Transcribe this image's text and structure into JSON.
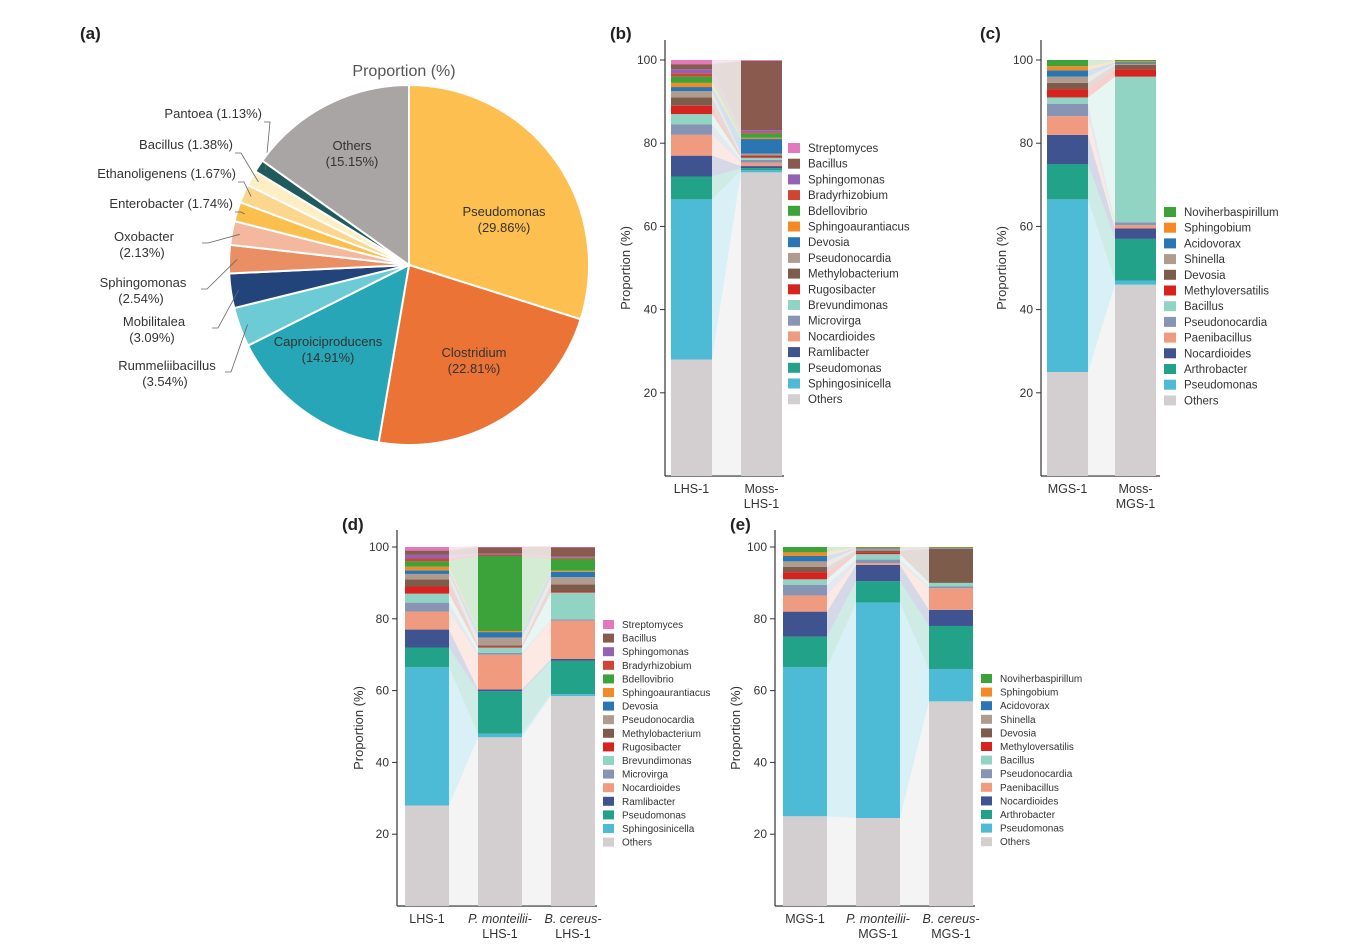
{
  "colors": {
    "Others": "#d3cecf",
    "Pseudomonas": "#4dbad6",
    "Sphingosinicella": "#4dbad6",
    "Arthrobacter": "#22a288",
    "Pseudomonas_b": "#22a288",
    "Ramlibacter": "#3f5390",
    "Nocardioides": "#3f5390",
    "Nocardioides_b": "#f09a80",
    "Paenibacillus": "#f09a80",
    "Microvirga": "#8794b3",
    "Pseudonocardia": "#8794b3",
    "Brevundimonas": "#91d4c4",
    "Bacillus_c": "#91d4c4",
    "Rugosibacter": "#d62320",
    "Methyloversatilis": "#d62320",
    "Methylobacterium": "#7e5c4b",
    "Devosia_c": "#7e5c4b",
    "Pseudonocardia_b": "#b09c8e",
    "Shinella": "#b09c8e",
    "Devosia": "#2a76b5",
    "Acidovorax": "#2a76b5",
    "Sphingoaurantiacus": "#f58a25",
    "Sphingobium": "#f58a25",
    "Bdellovibrio": "#3ba33a",
    "Noviherbaspirillum": "#3ba33a",
    "Bradyrhizobium": "#cf4533",
    "Sphingomonas": "#9461b5",
    "Bacillus": "#8a5a4e",
    "Streptomyces": "#e279bd"
  },
  "chart_data": [
    {
      "panel": "(a)",
      "type": "pie",
      "title": "Proportion (%)",
      "slices": [
        {
          "label": "Pseudomonas",
          "pct": "(29.86%)",
          "value": 29.86,
          "color": "#fdbf4f",
          "inside": true
        },
        {
          "label": "Clostridium",
          "pct": "(22.81%)",
          "value": 22.81,
          "color": "#eb7336",
          "inside": true
        },
        {
          "label": "Caproiciproducens",
          "pct": "(14.91%)",
          "value": 14.91,
          "color": "#27a6b7",
          "inside": true
        },
        {
          "label": "Rummeliibacillus",
          "pct": "(3.54%)",
          "value": 3.54,
          "color": "#6ccbd4",
          "inside": false
        },
        {
          "label": "Mobilitalea",
          "pct": "(3.09%)",
          "value": 3.09,
          "color": "#23447a",
          "inside": false
        },
        {
          "label": "Sphingomonas",
          "pct": "(2.54%)",
          "value": 2.54,
          "color": "#ea8f63",
          "inside": false
        },
        {
          "label": "Oxobacter",
          "pct": "(2.13%)",
          "value": 2.13,
          "color": "#f3b89e",
          "inside": false
        },
        {
          "label": "Enterobacter",
          "pct": "(1.74%)",
          "value": 1.74,
          "color": "#fbbf4d",
          "inside": false
        },
        {
          "label": "Ethanoligenens",
          "pct": "(1.67%)",
          "value": 1.67,
          "color": "#fcd68c",
          "inside": false
        },
        {
          "label": "Bacillus",
          "pct": "(1.38%)",
          "value": 1.38,
          "color": "#fdeec4",
          "inside": false
        },
        {
          "label": "Pantoea",
          "pct": "(1.13%)",
          "value": 1.13,
          "color": "#1f5a5c",
          "inside": false
        },
        {
          "label": "Others",
          "pct": "(15.15%)",
          "value": 15.15,
          "color": "#a9a5a4",
          "inside": true
        }
      ]
    },
    {
      "panel": "(b)",
      "type": "bar",
      "stacked": true,
      "ylabel": "Proportion (%)",
      "yticks": [
        20,
        40,
        60,
        80,
        100
      ],
      "categories": [
        [
          "LHS-1"
        ],
        [
          "Moss-",
          "LHS-1"
        ]
      ],
      "series": [
        {
          "name": "Others",
          "ckey": "Others",
          "values": [
            28,
            73
          ]
        },
        {
          "name": "Sphingosinicella",
          "ckey": "Sphingosinicella",
          "values": [
            38.5,
            0.5
          ]
        },
        {
          "name": "Pseudomonas",
          "ckey": "Pseudomonas_b",
          "values": [
            5.5,
            0.5
          ]
        },
        {
          "name": "Ramlibacter",
          "ckey": "Ramlibacter",
          "values": [
            5,
            0.5
          ]
        },
        {
          "name": "Nocardioides",
          "ckey": "Nocardioides_b",
          "values": [
            5,
            0.8
          ]
        },
        {
          "name": "Microvirga",
          "ckey": "Microvirga",
          "values": [
            2.5,
            0.7
          ]
        },
        {
          "name": "Brevundimonas",
          "ckey": "Brevundimonas",
          "values": [
            2.5,
            0.5
          ]
        },
        {
          "name": "Rugosibacter",
          "ckey": "Rugosibacter",
          "values": [
            2,
            0.3
          ]
        },
        {
          "name": "Methylobacterium",
          "ckey": "Methylobacterium",
          "values": [
            2,
            0.3
          ]
        },
        {
          "name": "Pseudonocardia",
          "ckey": "Pseudonocardia_b",
          "values": [
            1.5,
            0.4
          ]
        },
        {
          "name": "Devosia",
          "ckey": "Devosia",
          "values": [
            1,
            3.5
          ]
        },
        {
          "name": "Sphingoaurantiacus",
          "ckey": "Sphingoaurantiacus",
          "values": [
            1,
            0.3
          ]
        },
        {
          "name": "Bdellovibrio",
          "ckey": "Bdellovibrio",
          "values": [
            1.5,
            1
          ]
        },
        {
          "name": "Bradyrhizobium",
          "ckey": "Bradyrhizobium",
          "values": [
            0.8,
            0.3
          ]
        },
        {
          "name": "Sphingomonas",
          "ckey": "Sphingomonas",
          "values": [
            1,
            0.5
          ]
        },
        {
          "name": "Bacillus",
          "ckey": "Bacillus",
          "values": [
            1.2,
            16.7
          ]
        },
        {
          "name": "Streptomyces",
          "ckey": "Streptomyces",
          "values": [
            1,
            0.2
          ]
        }
      ]
    },
    {
      "panel": "(c)",
      "type": "bar",
      "stacked": true,
      "ylabel": "Proportion (%)",
      "yticks": [
        20,
        40,
        60,
        80,
        100
      ],
      "categories": [
        [
          "MGS-1"
        ],
        [
          "Moss-",
          "MGS-1"
        ]
      ],
      "series": [
        {
          "name": "Others",
          "ckey": "Others",
          "values": [
            25,
            46
          ]
        },
        {
          "name": "Pseudomonas",
          "ckey": "Pseudomonas",
          "values": [
            41.5,
            1
          ]
        },
        {
          "name": "Arthrobacter",
          "ckey": "Arthrobacter",
          "values": [
            8.5,
            10
          ]
        },
        {
          "name": "Nocardioides",
          "ckey": "Nocardioides",
          "values": [
            7,
            2.5
          ]
        },
        {
          "name": "Paenibacillus",
          "ckey": "Paenibacillus",
          "values": [
            4.5,
            0.8
          ]
        },
        {
          "name": "Pseudonocardia",
          "ckey": "Pseudonocardia",
          "values": [
            3,
            0.7
          ]
        },
        {
          "name": "Bacillus",
          "ckey": "Bacillus_c",
          "values": [
            1.5,
            35
          ]
        },
        {
          "name": "Methyloversatilis",
          "ckey": "Methyloversatilis",
          "values": [
            2,
            1.8
          ]
        },
        {
          "name": "Devosia",
          "ckey": "Devosia_c",
          "values": [
            1.5,
            1
          ]
        },
        {
          "name": "Shinella",
          "ckey": "Shinella",
          "values": [
            1.5,
            0.3
          ]
        },
        {
          "name": "Acidovorax",
          "ckey": "Acidovorax",
          "values": [
            1.5,
            0.3
          ]
        },
        {
          "name": "Sphingobium",
          "ckey": "Sphingobium",
          "values": [
            1,
            0.3
          ]
        },
        {
          "name": "Noviherbaspirillum",
          "ckey": "Noviherbaspirillum",
          "values": [
            1.5,
            0.3
          ]
        }
      ]
    },
    {
      "panel": "(d)",
      "type": "bar",
      "stacked": true,
      "ylabel": "Proportion (%)",
      "yticks": [
        20,
        40,
        60,
        80,
        100
      ],
      "categories": [
        [
          "LHS-1"
        ],
        [
          "P. monteilii-",
          "LHS-1"
        ],
        [
          "B. cereus-",
          "LHS-1"
        ]
      ],
      "category_italic": [
        false,
        true,
        true
      ],
      "series": [
        {
          "name": "Others",
          "ckey": "Others",
          "values": [
            28,
            47,
            58.5
          ]
        },
        {
          "name": "Sphingosinicella",
          "ckey": "Sphingosinicella",
          "values": [
            38.5,
            1,
            0.5
          ]
        },
        {
          "name": "Pseudomonas",
          "ckey": "Pseudomonas_b",
          "values": [
            5.5,
            11.8,
            9.3
          ]
        },
        {
          "name": "Ramlibacter",
          "ckey": "Ramlibacter",
          "values": [
            5,
            0.5,
            0.5
          ]
        },
        {
          "name": "Nocardioides",
          "ckey": "Nocardioides_b",
          "values": [
            5,
            9.7,
            10.7
          ]
        },
        {
          "name": "Microvirga",
          "ckey": "Microvirga",
          "values": [
            2.5,
            0.5,
            0.3
          ]
        },
        {
          "name": "Brevundimonas",
          "ckey": "Brevundimonas",
          "values": [
            2.5,
            1.5,
            7.5
          ]
        },
        {
          "name": "Rugosibacter",
          "ckey": "Rugosibacter",
          "values": [
            2,
            0.3,
            0.3
          ]
        },
        {
          "name": "Methylobacterium",
          "ckey": "Methylobacterium",
          "values": [
            2,
            0.3,
            2
          ]
        },
        {
          "name": "Pseudonocardia",
          "ckey": "Pseudonocardia_b",
          "values": [
            1.5,
            2.2,
            2
          ]
        },
        {
          "name": "Devosia",
          "ckey": "Devosia",
          "values": [
            1,
            1.5,
            1.5
          ]
        },
        {
          "name": "Sphingoaurantiacus",
          "ckey": "Sphingoaurantiacus",
          "values": [
            1,
            0.3,
            0.3
          ]
        },
        {
          "name": "Bdellovibrio",
          "ckey": "Bdellovibrio",
          "values": [
            1.5,
            20.9,
            3.3
          ]
        },
        {
          "name": "Bradyrhizobium",
          "ckey": "Bradyrhizobium",
          "values": [
            0.8,
            0.3,
            0.3
          ]
        },
        {
          "name": "Sphingomonas",
          "ckey": "Sphingomonas",
          "values": [
            1,
            0.3,
            0.3
          ]
        },
        {
          "name": "Bacillus",
          "ckey": "Bacillus",
          "values": [
            1.2,
            1.9,
            2.7
          ]
        },
        {
          "name": "Streptomyces",
          "ckey": "Streptomyces",
          "values": [
            1,
            0.2,
            0.2
          ]
        }
      ]
    },
    {
      "panel": "(e)",
      "type": "bar",
      "stacked": true,
      "ylabel": "Proportion (%)",
      "yticks": [
        20,
        40,
        60,
        80,
        100
      ],
      "categories": [
        [
          "MGS-1"
        ],
        [
          "P. monteilii-",
          "MGS-1"
        ],
        [
          "B. cereus-",
          "MGS-1"
        ]
      ],
      "category_italic": [
        false,
        true,
        true
      ],
      "series": [
        {
          "name": "Others",
          "ckey": "Others",
          "values": [
            25,
            24.5,
            57
          ]
        },
        {
          "name": "Pseudomonas",
          "ckey": "Pseudomonas",
          "values": [
            41.5,
            60,
            9
          ]
        },
        {
          "name": "Arthrobacter",
          "ckey": "Arthrobacter",
          "values": [
            8.5,
            6,
            12
          ]
        },
        {
          "name": "Nocardioides",
          "ckey": "Nocardioides",
          "values": [
            7,
            4.5,
            4.5
          ]
        },
        {
          "name": "Paenibacillus",
          "ckey": "Paenibacillus",
          "values": [
            4.5,
            0.5,
            6
          ]
        },
        {
          "name": "Pseudonocardia",
          "ckey": "Pseudonocardia",
          "values": [
            3,
            1,
            0.5
          ]
        },
        {
          "name": "Bacillus",
          "ckey": "Bacillus_c",
          "values": [
            1.5,
            1.5,
            1
          ]
        },
        {
          "name": "Methyloversatilis",
          "ckey": "Methyloversatilis",
          "values": [
            2,
            0.5,
            0
          ]
        },
        {
          "name": "Devosia",
          "ckey": "Devosia_c",
          "values": [
            1.5,
            0.5,
            9.5
          ]
        },
        {
          "name": "Shinella",
          "ckey": "Shinella",
          "values": [
            1.5,
            0.5,
            0.2
          ]
        },
        {
          "name": "Acidovorax",
          "ckey": "Acidovorax",
          "values": [
            1.5,
            0.2,
            0.1
          ]
        },
        {
          "name": "Sphingobium",
          "ckey": "Sphingobium",
          "values": [
            1,
            0.2,
            0.1
          ]
        },
        {
          "name": "Noviherbaspirillum",
          "ckey": "Noviherbaspirillum",
          "values": [
            1.5,
            0.1,
            0.1
          ]
        }
      ]
    }
  ]
}
